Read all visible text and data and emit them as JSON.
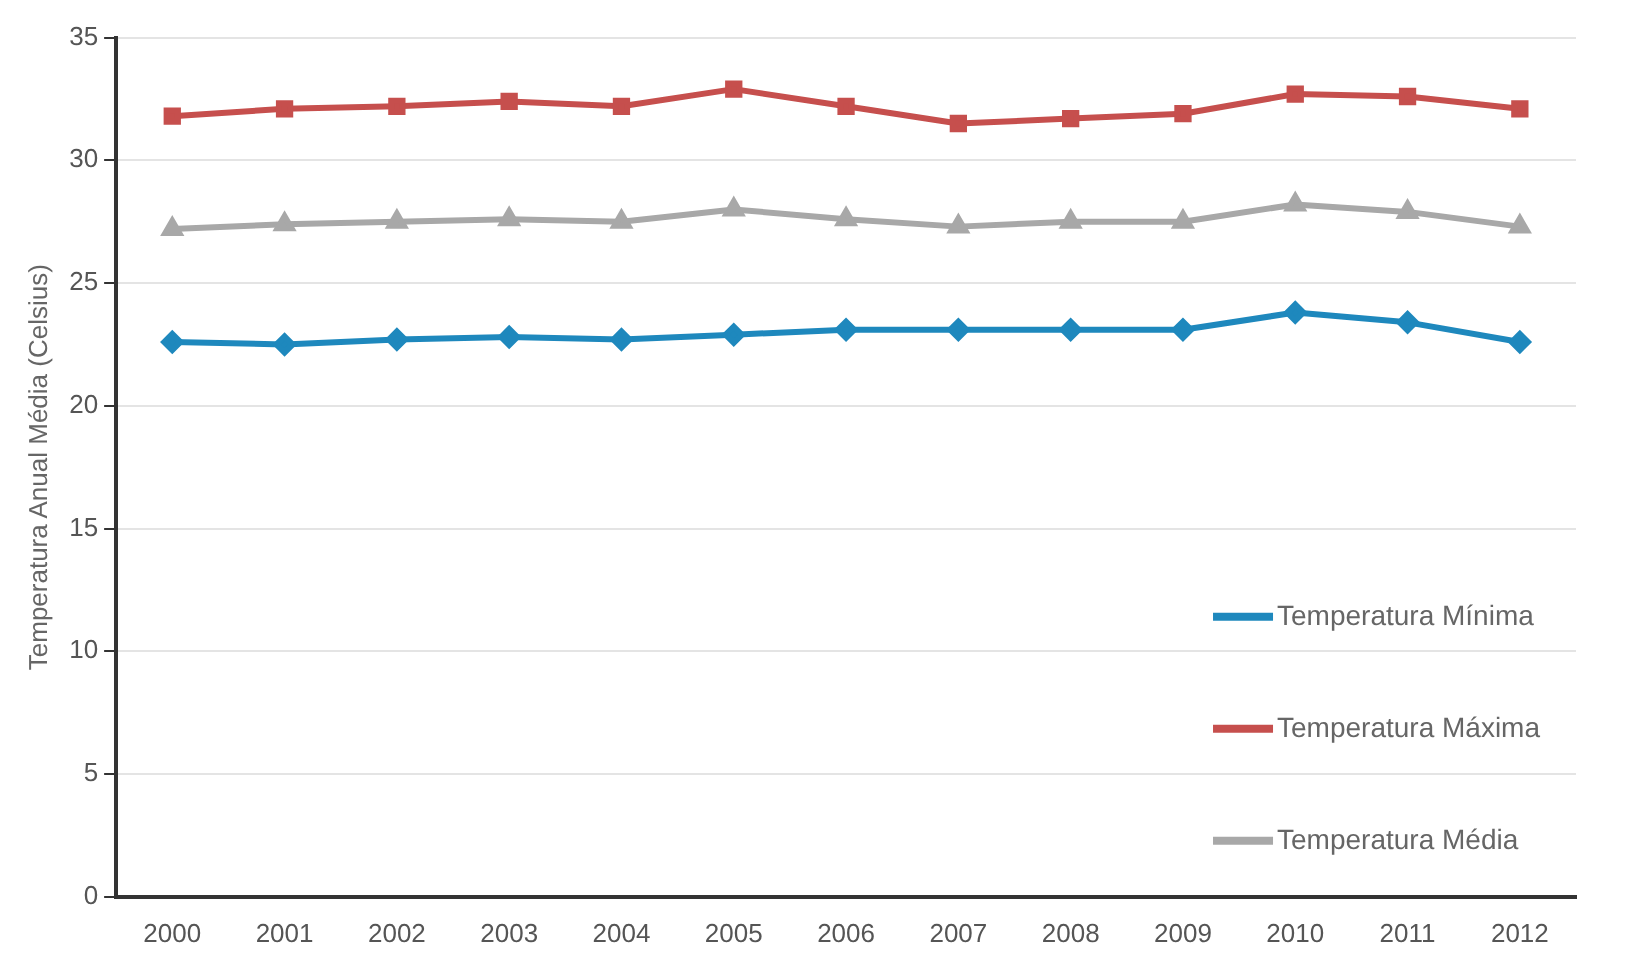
{
  "chart_data": {
    "type": "line",
    "ylabel": "Temperatura Anual Média (Celsius)",
    "categories": [
      "2000",
      "2001",
      "2002",
      "2003",
      "2004",
      "2005",
      "2006",
      "2007",
      "2008",
      "2009",
      "2010",
      "2011",
      "2012"
    ],
    "series": [
      {
        "name": "Temperatura Mínima",
        "color": "#1e88bd",
        "marker": "diamond",
        "values": [
          22.6,
          22.5,
          22.7,
          22.8,
          22.7,
          22.9,
          23.1,
          23.1,
          23.1,
          23.1,
          23.8,
          23.4,
          22.6
        ]
      },
      {
        "name": "Temperatura Máxima",
        "color": "#c64f4d",
        "marker": "square",
        "values": [
          31.8,
          32.1,
          32.2,
          32.4,
          32.2,
          32.9,
          32.2,
          31.5,
          31.7,
          31.9,
          32.7,
          32.6,
          32.1
        ]
      },
      {
        "name": "Temperatura Média",
        "color": "#a8a8a8",
        "marker": "triangle",
        "values": [
          27.2,
          27.4,
          27.5,
          27.6,
          27.5,
          28.0,
          27.6,
          27.3,
          27.5,
          27.5,
          28.2,
          27.9,
          27.3
        ]
      }
    ],
    "ylim": [
      0,
      35
    ],
    "yticks": [
      0,
      5,
      10,
      15,
      20,
      25,
      30,
      35
    ],
    "grid": "y",
    "legend": "bottom right",
    "line_style": "solid"
  }
}
